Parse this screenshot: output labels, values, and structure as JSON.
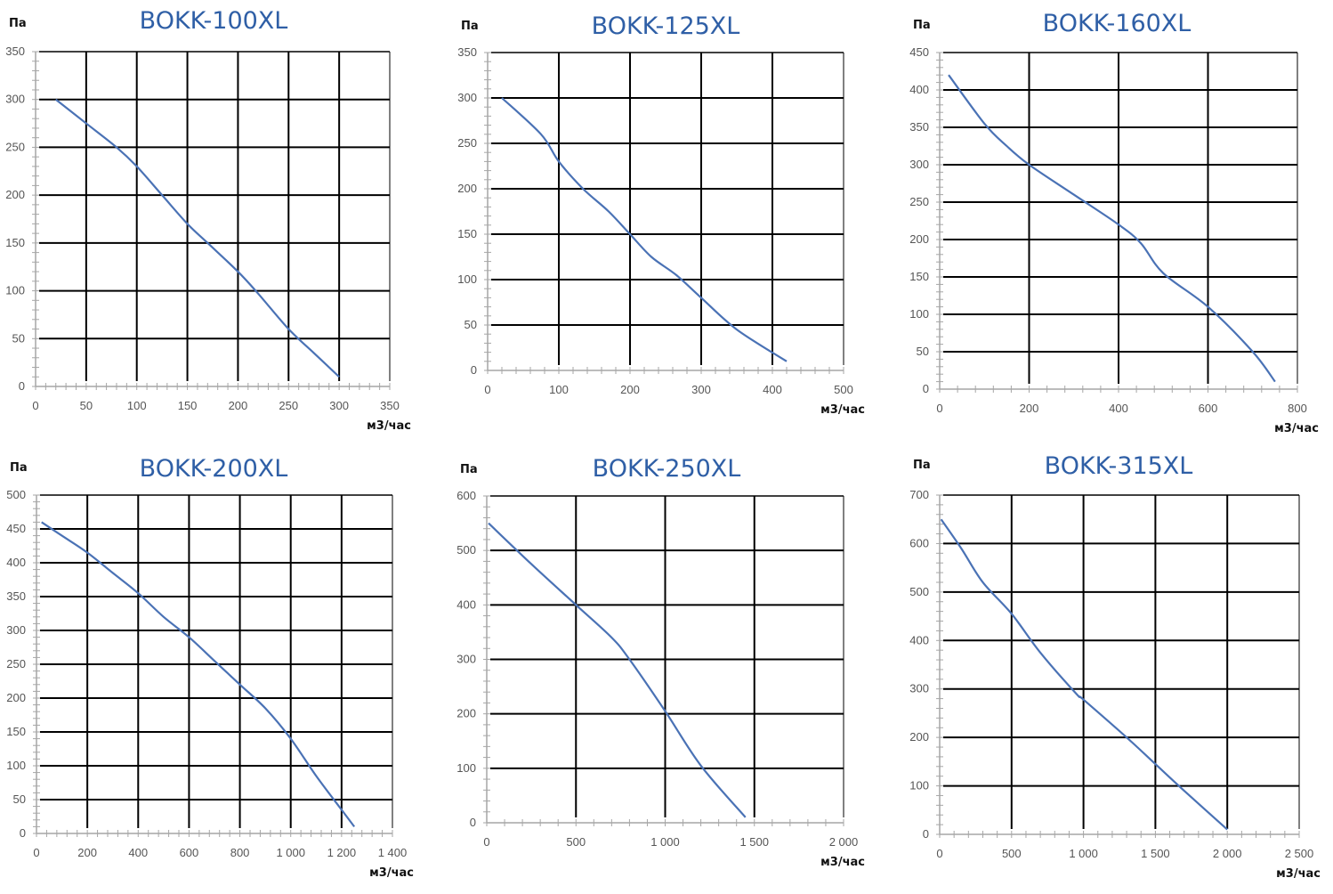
{
  "colors": {
    "title": "#2f5fa6",
    "curve": "#4a72b5",
    "grid": "#000000",
    "axis": "#a6a6a6"
  },
  "chart_data": [
    {
      "type": "line",
      "title": "BOKK-100XL",
      "ylabel": "Па",
      "xlabel": "м3/час",
      "xlim": [
        0,
        350
      ],
      "ylim": [
        0,
        350
      ],
      "xstep": 50,
      "ystep": 50,
      "xticks": [
        "0",
        "50",
        "100",
        "150",
        "200",
        "250",
        "300",
        "350"
      ],
      "yticks": [
        "0",
        "50",
        "100",
        "150",
        "200",
        "250",
        "300",
        "350"
      ],
      "x": [
        20,
        50,
        80,
        100,
        125,
        150,
        170,
        200,
        220,
        250,
        275,
        300
      ],
      "y": [
        300,
        275,
        250,
        230,
        200,
        170,
        150,
        120,
        97,
        60,
        35,
        10
      ]
    },
    {
      "type": "line",
      "title": "BOKK-125XL",
      "ylabel": "Па",
      "xlabel": "м3/час",
      "xlim": [
        0,
        500
      ],
      "ylim": [
        0,
        350
      ],
      "xstep": 100,
      "ystep": 50,
      "xticks": [
        "0",
        "100",
        "200",
        "300",
        "400",
        "500"
      ],
      "yticks": [
        "0",
        "50",
        "100",
        "150",
        "200",
        "250",
        "300",
        "350"
      ],
      "x": [
        20,
        75,
        100,
        134,
        170,
        200,
        230,
        265,
        300,
        350,
        420
      ],
      "y": [
        300,
        260,
        230,
        200,
        175,
        150,
        125,
        105,
        80,
        45,
        10
      ]
    },
    {
      "type": "line",
      "title": "BOKK-160XL",
      "ylabel": "Па",
      "xlabel": "м3/час",
      "xlim": [
        0,
        800
      ],
      "ylim": [
        0,
        450
      ],
      "xstep": 200,
      "ystep": 50,
      "xticks": [
        "0",
        "200",
        "400",
        "600",
        "800"
      ],
      "yticks": [
        "0",
        "50",
        "100",
        "150",
        "200",
        "250",
        "300",
        "350",
        "400",
        "450"
      ],
      "x": [
        20,
        100,
        150,
        200,
        300,
        400,
        450,
        500,
        600,
        700,
        750
      ],
      "y": [
        420,
        355,
        325,
        300,
        260,
        220,
        195,
        155,
        110,
        50,
        10
      ]
    },
    {
      "type": "line",
      "title": "BOKK-200XL",
      "ylabel": "Па",
      "xlabel": "м3/час",
      "xlim": [
        0,
        1400
      ],
      "ylim": [
        0,
        500
      ],
      "xstep": 200,
      "ystep": 50,
      "xticks": [
        "0",
        "200",
        "400",
        "600",
        "800",
        "1 000",
        "1 200",
        "1 400"
      ],
      "yticks": [
        "0",
        "50",
        "100",
        "150",
        "200",
        "250",
        "300",
        "350",
        "400",
        "450",
        "500"
      ],
      "x": [
        20,
        100,
        200,
        300,
        400,
        500,
        600,
        700,
        800,
        900,
        1000,
        1100,
        1200,
        1250
      ],
      "y": [
        460,
        440,
        415,
        385,
        355,
        320,
        290,
        255,
        220,
        185,
        140,
        85,
        35,
        10
      ]
    },
    {
      "type": "line",
      "title": "BOKK-250XL",
      "ylabel": "Па",
      "xlabel": "м3/час",
      "xlim": [
        0,
        2000
      ],
      "ylim": [
        0,
        600
      ],
      "xstep": 500,
      "ystep": 100,
      "xticks": [
        "0",
        "500",
        "1 000",
        "1 500",
        "2 000"
      ],
      "yticks": [
        "0",
        "100",
        "200",
        "300",
        "400",
        "500",
        "600"
      ],
      "x": [
        10,
        250,
        500,
        700,
        800,
        1000,
        1200,
        1450
      ],
      "y": [
        550,
        475,
        400,
        340,
        300,
        205,
        105,
        10
      ]
    },
    {
      "type": "line",
      "title": "BOKK-315XL",
      "ylabel": "Па",
      "xlabel": "м3/час",
      "xlim": [
        0,
        2500
      ],
      "ylim": [
        0,
        700
      ],
      "xstep": 500,
      "ystep": 100,
      "xticks": [
        "0",
        "500",
        "1 000",
        "1 500",
        "2 000",
        "2 500"
      ],
      "yticks": [
        "0",
        "100",
        "200",
        "300",
        "400",
        "500",
        "600",
        "700"
      ],
      "x": [
        10,
        150,
        300,
        500,
        700,
        950,
        1000,
        1300,
        1500,
        1700,
        2000
      ],
      "y": [
        650,
        590,
        520,
        455,
        375,
        290,
        278,
        200,
        145,
        90,
        10
      ]
    }
  ]
}
